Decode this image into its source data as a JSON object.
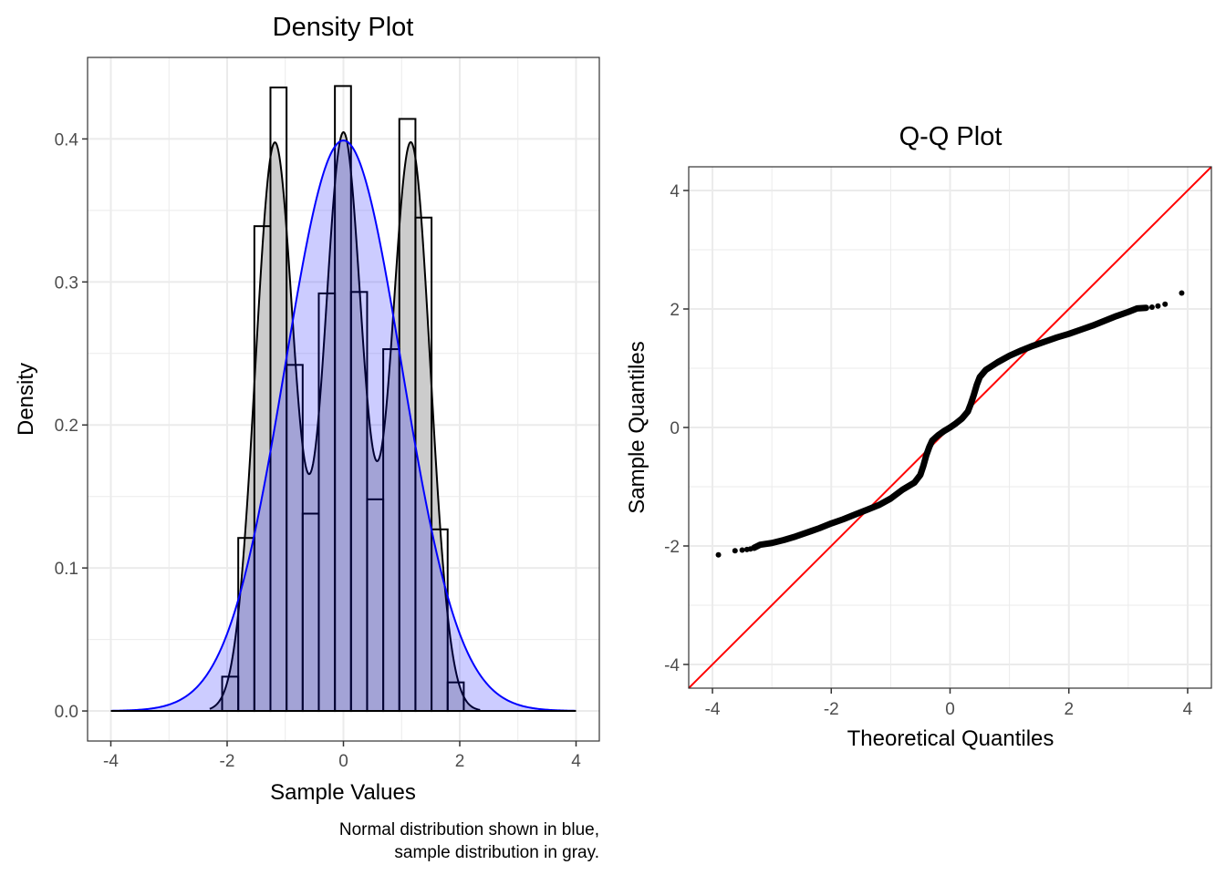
{
  "chart_data": [
    {
      "type": "bar",
      "title": "Density Plot",
      "xlabel": "Sample Values",
      "ylabel": "Density",
      "caption": [
        "Normal distribution shown in blue,",
        "sample distribution in gray."
      ],
      "xlim": [
        -4.4,
        4.4
      ],
      "ylim": [
        -0.021,
        0.457
      ],
      "xticks": [
        -4,
        -2,
        0,
        2,
        4
      ],
      "xtick_labels": [
        "-4",
        "-2",
        "0",
        "2",
        "4"
      ],
      "yticks": [
        0,
        0.1,
        0.2,
        0.3,
        0.4
      ],
      "ytick_labels": [
        "0.0",
        "0.1",
        "0.2",
        "0.3",
        "0.4"
      ],
      "grid": true,
      "histogram": {
        "bin_start": -2.086,
        "bin_width": 0.277,
        "densities": [
          0.024,
          0.121,
          0.339,
          0.436,
          0.242,
          0.138,
          0.292,
          0.437,
          0.293,
          0.148,
          0.253,
          0.414,
          0.345,
          0.127,
          0.02
        ]
      },
      "sample_density": {
        "color": "#000000",
        "fill": "#cccccc",
        "mixture": [
          {
            "mean": -1.18,
            "sd": 0.335,
            "weight": 0.3333
          },
          {
            "mean": 0.0,
            "sd": 0.33,
            "weight": 0.3333
          },
          {
            "mean": 1.16,
            "sd": 0.335,
            "weight": 0.3333
          }
        ],
        "range": [
          -2.3,
          2.35
        ]
      },
      "normal_density": {
        "mean": 0,
        "sd": 1,
        "color": "#0000ff",
        "fill": "#0000ff",
        "fill_alpha": 0.2,
        "range": [
          -4,
          4
        ]
      }
    },
    {
      "type": "scatter",
      "title": "Q-Q Plot",
      "xlabel": "Theoretical Quantiles",
      "ylabel": "Sample Quantiles",
      "xlim": [
        -4.4,
        4.4
      ],
      "ylim": [
        -4.4,
        4.4
      ],
      "xticks": [
        -4,
        -2,
        0,
        2,
        4
      ],
      "xtick_labels": [
        "-4",
        "-2",
        "0",
        "2",
        "4"
      ],
      "yticks": [
        -4,
        -2,
        0,
        2,
        4
      ],
      "ytick_labels": [
        "-4",
        "-2",
        "0",
        "2",
        "4"
      ],
      "grid": true,
      "reference_line": {
        "slope": 1,
        "intercept": 0,
        "color": "#ff0000"
      },
      "point_color": "#000000",
      "points": [
        [
          -3.9,
          -2.15
        ],
        [
          -3.62,
          -2.08
        ],
        [
          -3.5,
          -2.07
        ],
        [
          -3.42,
          -2.06
        ],
        [
          -3.36,
          -2.05
        ],
        [
          -3.3,
          -2.03
        ],
        [
          -3.2,
          -1.98
        ],
        [
          -3.0,
          -1.95
        ],
        [
          -2.8,
          -1.9
        ],
        [
          -2.6,
          -1.84
        ],
        [
          -2.4,
          -1.77
        ],
        [
          -2.2,
          -1.7
        ],
        [
          -2.0,
          -1.62
        ],
        [
          -1.8,
          -1.55
        ],
        [
          -1.6,
          -1.47
        ],
        [
          -1.4,
          -1.39
        ],
        [
          -1.2,
          -1.31
        ],
        [
          -1.0,
          -1.2
        ],
        [
          -0.8,
          -1.05
        ],
        [
          -0.6,
          -0.93
        ],
        [
          -0.5,
          -0.8
        ],
        [
          -0.45,
          -0.65
        ],
        [
          -0.4,
          -0.47
        ],
        [
          -0.35,
          -0.33
        ],
        [
          -0.3,
          -0.22
        ],
        [
          -0.2,
          -0.13
        ],
        [
          -0.1,
          -0.06
        ],
        [
          0.0,
          0.0
        ],
        [
          0.1,
          0.07
        ],
        [
          0.2,
          0.15
        ],
        [
          0.3,
          0.27
        ],
        [
          0.35,
          0.4
        ],
        [
          0.4,
          0.55
        ],
        [
          0.45,
          0.72
        ],
        [
          0.5,
          0.85
        ],
        [
          0.6,
          0.97
        ],
        [
          0.8,
          1.1
        ],
        [
          1.0,
          1.21
        ],
        [
          1.2,
          1.3
        ],
        [
          1.4,
          1.38
        ],
        [
          1.6,
          1.45
        ],
        [
          1.8,
          1.52
        ],
        [
          2.0,
          1.58
        ],
        [
          2.2,
          1.65
        ],
        [
          2.4,
          1.72
        ],
        [
          2.6,
          1.8
        ],
        [
          2.8,
          1.88
        ],
        [
          3.0,
          1.95
        ],
        [
          3.15,
          2.01
        ],
        [
          3.3,
          2.02
        ],
        [
          3.4,
          2.03
        ],
        [
          3.5,
          2.05
        ],
        [
          3.62,
          2.08
        ],
        [
          3.9,
          2.27
        ]
      ],
      "dense_range": [
        -3.3,
        3.3
      ]
    }
  ]
}
